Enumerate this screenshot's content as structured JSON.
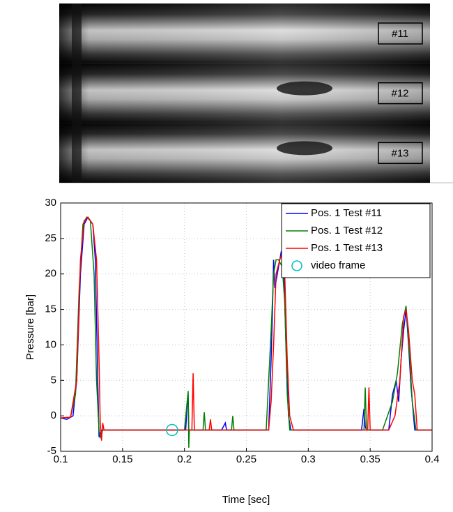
{
  "photo": {
    "labels": [
      "#11",
      "#12",
      "#13"
    ]
  },
  "chart_data": {
    "type": "line",
    "xlabel": "Time [sec]",
    "ylabel": "Pressure [bar]",
    "xlim": [
      0.1,
      0.4
    ],
    "xticks": [
      0.1,
      0.15,
      0.2,
      0.25,
      0.3,
      0.35,
      0.4
    ],
    "ylim": [
      -5,
      30
    ],
    "yticks": [
      -5,
      0,
      5,
      10,
      15,
      20,
      25,
      30
    ],
    "grid": true,
    "legend": "upper right",
    "series": [
      {
        "name": "Pos. 1 Test #11",
        "color": "#0000ff",
        "x": [
          0.1,
          0.105,
          0.11,
          0.113,
          0.116,
          0.119,
          0.122,
          0.126,
          0.128,
          0.13,
          0.131,
          0.133,
          0.175,
          0.2,
          0.201,
          0.202,
          0.203,
          0.2035,
          0.23,
          0.233,
          0.234,
          0.25,
          0.265,
          0.268,
          0.27,
          0.271,
          0.272,
          0.273,
          0.275,
          0.277,
          0.278,
          0.28,
          0.282,
          0.284,
          0.286,
          0.343,
          0.345,
          0.346,
          0.347,
          0.36,
          0.365,
          0.368,
          0.371,
          0.373,
          0.375,
          0.377,
          0.379,
          0.381,
          0.383,
          0.386,
          0.4
        ],
        "values": [
          -0.3,
          -0.5,
          0,
          5,
          20,
          27,
          28,
          27,
          22,
          5,
          -3,
          -2,
          -2,
          -2,
          -2,
          1,
          3,
          -2,
          -2,
          -1,
          -2,
          -2,
          -2,
          -2,
          8,
          14,
          22,
          18,
          20,
          22,
          23,
          22,
          10,
          0,
          -2,
          -2,
          1,
          -1.5,
          -2,
          -2,
          -2,
          3,
          5,
          2,
          8,
          12,
          15,
          10,
          4,
          -2,
          -2
        ]
      },
      {
        "name": "Pos. 1 Test #12",
        "color": "#008000",
        "x": [
          0.1,
          0.108,
          0.112,
          0.115,
          0.118,
          0.121,
          0.124,
          0.127,
          0.129,
          0.131,
          0.132,
          0.134,
          0.2,
          0.203,
          0.2035,
          0.204,
          0.205,
          0.215,
          0.216,
          0.217,
          0.238,
          0.239,
          0.24,
          0.266,
          0.268,
          0.27,
          0.272,
          0.274,
          0.276,
          0.279,
          0.281,
          0.283,
          0.285,
          0.345,
          0.346,
          0.347,
          0.36,
          0.368,
          0.372,
          0.376,
          0.379,
          0.382,
          0.384,
          0.387,
          0.4
        ],
        "values": [
          -0.3,
          -0.2,
          3,
          18,
          27,
          28,
          27.5,
          20,
          5,
          -2,
          -3,
          -2,
          -2,
          3.5,
          -4.5,
          -2,
          -2,
          -2,
          0.5,
          -2,
          -2,
          0,
          -2,
          -2,
          5,
          12,
          20,
          22,
          22,
          21,
          16,
          3,
          -2,
          -2,
          4,
          -2,
          -2,
          2,
          6,
          13,
          15.5,
          8,
          2,
          -2,
          -2
        ]
      },
      {
        "name": "Pos. 1 Test #13",
        "color": "#ff0000",
        "x": [
          0.1,
          0.108,
          0.113,
          0.116,
          0.119,
          0.122,
          0.126,
          0.129,
          0.131,
          0.132,
          0.133,
          0.134,
          0.135,
          0.2,
          0.206,
          0.207,
          0.208,
          0.22,
          0.221,
          0.222,
          0.26,
          0.268,
          0.27,
          0.272,
          0.274,
          0.277,
          0.279,
          0.281,
          0.283,
          0.285,
          0.288,
          0.348,
          0.349,
          0.35,
          0.365,
          0.37,
          0.374,
          0.377,
          0.379,
          0.381,
          0.384,
          0.386,
          0.388,
          0.4
        ],
        "values": [
          -0.3,
          -0.2,
          5,
          22,
          27.5,
          28,
          27,
          22,
          8,
          -1,
          -3.5,
          -1,
          -2,
          -2,
          -2,
          6,
          -2,
          -2,
          -0.5,
          -2,
          -2,
          -2,
          2,
          10,
          20,
          22,
          23,
          20,
          8,
          0,
          -2,
          -2,
          4,
          -2,
          -2,
          0,
          5,
          14,
          15,
          12,
          5,
          3,
          -2,
          -2
        ]
      },
      {
        "name": "video frame",
        "color": "#00bfbf",
        "marker": "circle",
        "x": [
          0.19
        ],
        "values": [
          -2
        ]
      }
    ]
  }
}
